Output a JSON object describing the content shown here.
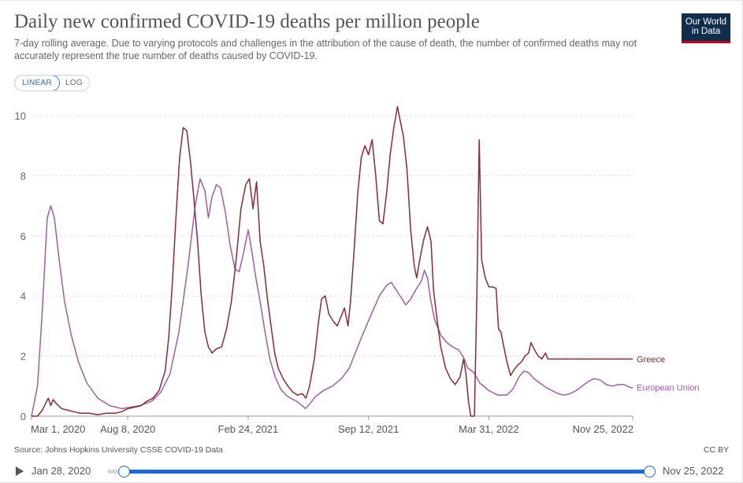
{
  "header": {
    "title": "Daily new confirmed COVID-19 deaths per million people",
    "subtitle": "7-day rolling average. Due to varying protocols and challenges in the attribution of the cause of death, the number of confirmed deaths may not accurately represent the true number of deaths caused by COVID-19.",
    "logo_line1": "Our World",
    "logo_line2": "in Data"
  },
  "scale_toggle": {
    "linear_label": "LINEAR",
    "log_label": "LOG",
    "selected": "LINEAR"
  },
  "footer": {
    "source": "Source: Johns Hopkins University CSSE COVID-19 Data",
    "license": "CC BY"
  },
  "timeline": {
    "start_label": "Jan 28, 2020",
    "end_label": "Nov 25, 2022"
  },
  "colors": {
    "greece": "#8b2a33",
    "eu": "#a35bb0",
    "grid": "#dddddd",
    "slider": "#1869d7"
  },
  "chart_data": {
    "type": "line",
    "title": "Daily new confirmed COVID-19 deaths per million people",
    "xlabel": "",
    "ylabel": "",
    "ylim": [
      0,
      10
    ],
    "y_ticks": [
      0,
      2,
      4,
      6,
      8,
      10
    ],
    "x_domain": [
      0,
      999
    ],
    "x_ticks": [
      {
        "label": "Mar 1, 2020",
        "day": 0
      },
      {
        "label": "Aug 8, 2020",
        "day": 160
      },
      {
        "label": "Feb 24, 2021",
        "day": 360
      },
      {
        "label": "Sep 12, 2021",
        "day": 560
      },
      {
        "label": "Mar 31, 2022",
        "day": 760
      },
      {
        "label": "Nov 25, 2022",
        "day": 999
      }
    ],
    "series": [
      {
        "name": "European Union",
        "points": [
          [
            0,
            0
          ],
          [
            10,
            1
          ],
          [
            18,
            3.5
          ],
          [
            26,
            6.6
          ],
          [
            32,
            7.0
          ],
          [
            38,
            6.6
          ],
          [
            46,
            5.2
          ],
          [
            55,
            3.8
          ],
          [
            66,
            2.7
          ],
          [
            78,
            1.8
          ],
          [
            92,
            1.1
          ],
          [
            110,
            0.6
          ],
          [
            130,
            0.35
          ],
          [
            150,
            0.25
          ],
          [
            165,
            0.3
          ],
          [
            180,
            0.35
          ],
          [
            200,
            0.5
          ],
          [
            215,
            0.8
          ],
          [
            230,
            1.4
          ],
          [
            245,
            2.8
          ],
          [
            260,
            5.0
          ],
          [
            272,
            7.0
          ],
          [
            280,
            7.9
          ],
          [
            288,
            7.5
          ],
          [
            294,
            6.6
          ],
          [
            300,
            7.3
          ],
          [
            307,
            7.7
          ],
          [
            314,
            7.6
          ],
          [
            322,
            6.8
          ],
          [
            330,
            5.7
          ],
          [
            338,
            4.9
          ],
          [
            345,
            4.8
          ],
          [
            352,
            5.4
          ],
          [
            360,
            6.2
          ],
          [
            366,
            5.5
          ],
          [
            372,
            4.7
          ],
          [
            380,
            3.8
          ],
          [
            388,
            2.8
          ],
          [
            396,
            1.9
          ],
          [
            405,
            1.3
          ],
          [
            414,
            0.9
          ],
          [
            423,
            0.7
          ],
          [
            430,
            0.6
          ],
          [
            440,
            0.5
          ],
          [
            450,
            0.35
          ],
          [
            455,
            0.25
          ],
          [
            462,
            0.4
          ],
          [
            472,
            0.65
          ],
          [
            485,
            0.85
          ],
          [
            500,
            1.0
          ],
          [
            515,
            1.25
          ],
          [
            528,
            1.6
          ],
          [
            540,
            2.2
          ],
          [
            552,
            2.8
          ],
          [
            565,
            3.4
          ],
          [
            578,
            4.0
          ],
          [
            590,
            4.35
          ],
          [
            598,
            4.45
          ],
          [
            606,
            4.2
          ],
          [
            614,
            3.95
          ],
          [
            622,
            3.7
          ],
          [
            630,
            3.9
          ],
          [
            640,
            4.25
          ],
          [
            648,
            4.5
          ],
          [
            653,
            4.85
          ],
          [
            658,
            4.6
          ],
          [
            663,
            3.9
          ],
          [
            670,
            3.2
          ],
          [
            680,
            2.7
          ],
          [
            690,
            2.45
          ],
          [
            700,
            2.3
          ],
          [
            710,
            2.2
          ],
          [
            718,
            1.95
          ],
          [
            725,
            1.6
          ],
          [
            735,
            1.45
          ],
          [
            745,
            1.1
          ],
          [
            760,
            0.85
          ],
          [
            775,
            0.7
          ],
          [
            790,
            0.7
          ],
          [
            800,
            0.9
          ],
          [
            810,
            1.3
          ],
          [
            818,
            1.5
          ],
          [
            826,
            1.45
          ],
          [
            835,
            1.25
          ],
          [
            845,
            1.1
          ],
          [
            855,
            0.95
          ],
          [
            865,
            0.85
          ],
          [
            875,
            0.75
          ],
          [
            885,
            0.7
          ],
          [
            895,
            0.75
          ],
          [
            905,
            0.85
          ],
          [
            915,
            1.0
          ],
          [
            925,
            1.15
          ],
          [
            935,
            1.25
          ],
          [
            945,
            1.2
          ],
          [
            955,
            1.05
          ],
          [
            965,
            1.0
          ],
          [
            975,
            1.05
          ],
          [
            985,
            1.05
          ],
          [
            995,
            0.95
          ],
          [
            999,
            0.95
          ]
        ]
      },
      {
        "name": "Greece",
        "points": [
          [
            0,
            0
          ],
          [
            10,
            0
          ],
          [
            18,
            0.2
          ],
          [
            24,
            0.45
          ],
          [
            28,
            0.6
          ],
          [
            32,
            0.35
          ],
          [
            36,
            0.55
          ],
          [
            42,
            0.4
          ],
          [
            50,
            0.25
          ],
          [
            60,
            0.2
          ],
          [
            70,
            0.15
          ],
          [
            80,
            0.1
          ],
          [
            95,
            0.1
          ],
          [
            110,
            0.05
          ],
          [
            125,
            0.1
          ],
          [
            140,
            0.1
          ],
          [
            150,
            0.15
          ],
          [
            160,
            0.25
          ],
          [
            172,
            0.3
          ],
          [
            182,
            0.35
          ],
          [
            192,
            0.5
          ],
          [
            202,
            0.6
          ],
          [
            212,
            0.85
          ],
          [
            222,
            1.5
          ],
          [
            228,
            2.6
          ],
          [
            234,
            4.4
          ],
          [
            240,
            6.6
          ],
          [
            246,
            8.6
          ],
          [
            252,
            9.6
          ],
          [
            258,
            9.5
          ],
          [
            264,
            8.5
          ],
          [
            270,
            7.2
          ],
          [
            276,
            5.8
          ],
          [
            282,
            4.0
          ],
          [
            288,
            2.8
          ],
          [
            294,
            2.3
          ],
          [
            300,
            2.1
          ],
          [
            308,
            2.25
          ],
          [
            316,
            2.3
          ],
          [
            324,
            2.9
          ],
          [
            332,
            3.8
          ],
          [
            340,
            5.2
          ],
          [
            348,
            6.9
          ],
          [
            356,
            7.7
          ],
          [
            362,
            7.9
          ],
          [
            368,
            6.9
          ],
          [
            374,
            7.8
          ],
          [
            380,
            5.8
          ],
          [
            386,
            5.0
          ],
          [
            392,
            3.9
          ],
          [
            398,
            3.0
          ],
          [
            404,
            2.1
          ],
          [
            410,
            1.6
          ],
          [
            418,
            1.25
          ],
          [
            426,
            1.0
          ],
          [
            434,
            0.8
          ],
          [
            442,
            0.7
          ],
          [
            450,
            0.75
          ],
          [
            456,
            0.6
          ],
          [
            462,
            1.0
          ],
          [
            470,
            1.9
          ],
          [
            476,
            3.0
          ],
          [
            482,
            3.9
          ],
          [
            488,
            4.0
          ],
          [
            494,
            3.4
          ],
          [
            500,
            3.2
          ],
          [
            508,
            3.0
          ],
          [
            514,
            3.3
          ],
          [
            520,
            3.6
          ],
          [
            526,
            3.0
          ],
          [
            530,
            3.8
          ],
          [
            536,
            5.5
          ],
          [
            542,
            7.4
          ],
          [
            548,
            8.6
          ],
          [
            554,
            9.0
          ],
          [
            560,
            8.7
          ],
          [
            566,
            9.2
          ],
          [
            572,
            8.0
          ],
          [
            578,
            6.5
          ],
          [
            584,
            6.4
          ],
          [
            590,
            7.4
          ],
          [
            596,
            8.7
          ],
          [
            602,
            9.6
          ],
          [
            608,
            10.3
          ],
          [
            612,
            9.9
          ],
          [
            618,
            9.3
          ],
          [
            624,
            8.2
          ],
          [
            630,
            6.2
          ],
          [
            636,
            5.0
          ],
          [
            640,
            4.6
          ],
          [
            646,
            5.3
          ],
          [
            652,
            5.9
          ],
          [
            658,
            6.3
          ],
          [
            664,
            5.8
          ],
          [
            668,
            4.2
          ],
          [
            674,
            3.2
          ],
          [
            680,
            2.3
          ],
          [
            688,
            1.6
          ],
          [
            696,
            1.25
          ],
          [
            704,
            1.05
          ],
          [
            712,
            1.3
          ],
          [
            718,
            1.9
          ],
          [
            722,
            1.4
          ],
          [
            726,
            0.5
          ],
          [
            730,
            0
          ],
          [
            736,
            0
          ],
          [
            740,
            4.0
          ],
          [
            744,
            9.2
          ],
          [
            748,
            5.2
          ],
          [
            754,
            4.6
          ],
          [
            760,
            4.3
          ],
          [
            766,
            4.3
          ],
          [
            772,
            4.25
          ],
          [
            776,
            2.9
          ],
          [
            780,
            2.8
          ],
          [
            786,
            2.2
          ],
          [
            790,
            1.8
          ],
          [
            796,
            1.35
          ],
          [
            802,
            1.55
          ],
          [
            808,
            1.7
          ],
          [
            814,
            1.8
          ],
          [
            820,
            2.0
          ],
          [
            826,
            2.1
          ],
          [
            830,
            2.45
          ],
          [
            836,
            2.2
          ],
          [
            842,
            2.0
          ],
          [
            848,
            1.9
          ],
          [
            854,
            2.1
          ],
          [
            858,
            1.9
          ],
          [
            999,
            1.9
          ]
        ]
      }
    ]
  }
}
